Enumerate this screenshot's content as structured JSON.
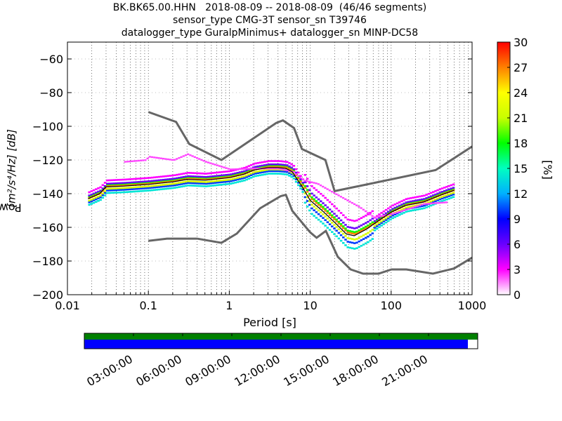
{
  "title": {
    "line1": "BK.BK65.00.HHN   2018-08-09 -- 2018-08-09  (46/46 segments)",
    "line2": "sensor_type CMG-3T sensor_sn T39746",
    "line3": "datalogger_type GuralpMinimus+ datalogger_sn MINP-DC58"
  },
  "chart_data": {
    "type": "heatmap",
    "xlabel": "Period [s]",
    "ylabel_prefix": "Power",
    "ylabel_units": "[m²/s⁴/Hz] [dB]",
    "x_scale": "log",
    "xlim": [
      0.01,
      1000
    ],
    "ylim": [
      -200,
      -50
    ],
    "x_ticks": [
      {
        "value": 0.01,
        "label": "0.01"
      },
      {
        "value": 0.1,
        "label": "0.1"
      },
      {
        "value": 1,
        "label": "1"
      },
      {
        "value": 10,
        "label": "10"
      },
      {
        "value": 100,
        "label": "100"
      },
      {
        "value": 1000,
        "label": "1000"
      }
    ],
    "y_ticks": [
      {
        "value": -60,
        "label": "−60"
      },
      {
        "value": -80,
        "label": "−80"
      },
      {
        "value": -100,
        "label": "−100"
      },
      {
        "value": -120,
        "label": "−120"
      },
      {
        "value": -140,
        "label": "−140"
      },
      {
        "value": -160,
        "label": "−160"
      },
      {
        "value": -180,
        "label": "−180"
      },
      {
        "value": -200,
        "label": "−200"
      }
    ],
    "grid": "dotted vertical at minor log ticks",
    "colorbar": {
      "label": "[%]",
      "min": 0,
      "max": 30,
      "ticks": [
        "0",
        "3",
        "6",
        "9",
        "12",
        "15",
        "18",
        "21",
        "24",
        "27",
        "30"
      ],
      "colormap": [
        "#ffffff",
        "#ff00ff",
        "#6a00ff",
        "#0000ff",
        "#00b0ff",
        "#00ffc0",
        "#00ff00",
        "#c8ff00",
        "#ffff00",
        "#ff8000",
        "#ff0000"
      ]
    },
    "noise_model_color": "#666666",
    "noise_model_high": [
      [
        0.1,
        -91.5
      ],
      [
        0.22,
        -97.4
      ],
      [
        0.32,
        -110.5
      ],
      [
        0.8,
        -120
      ],
      [
        3.8,
        -98
      ],
      [
        4.6,
        -96.5
      ],
      [
        6.3,
        -101
      ],
      [
        7.9,
        -113.5
      ],
      [
        15.4,
        -120
      ],
      [
        20,
        -138.5
      ],
      [
        354.8,
        -126
      ],
      [
        1000,
        -112
      ]
    ],
    "noise_model_low": [
      [
        0.1,
        -168
      ],
      [
        0.17,
        -166.7
      ],
      [
        0.4,
        -166.7
      ],
      [
        0.8,
        -169.2
      ],
      [
        1.24,
        -163.7
      ],
      [
        2.4,
        -148.7
      ],
      [
        4.3,
        -141.5
      ],
      [
        5,
        -140.7
      ],
      [
        6,
        -150.2
      ],
      [
        10,
        -163
      ],
      [
        12,
        -166.2
      ],
      [
        15.6,
        -162.1
      ],
      [
        21.9,
        -177.5
      ],
      [
        31.6,
        -185
      ],
      [
        45,
        -187.5
      ],
      [
        70,
        -187.5
      ],
      [
        101,
        -185
      ],
      [
        154,
        -185
      ],
      [
        328,
        -187.5
      ],
      [
        600,
        -184.4
      ],
      [
        1000,
        -178
      ]
    ],
    "mode_series": [
      [
        0.018,
        -143
      ],
      [
        0.025,
        -140
      ],
      [
        0.03,
        -136
      ],
      [
        0.05,
        -135.5
      ],
      [
        0.1,
        -134.5
      ],
      [
        0.2,
        -133
      ],
      [
        0.3,
        -131.5
      ],
      [
        0.5,
        -132
      ],
      [
        1,
        -130.5
      ],
      [
        1.5,
        -128.5
      ],
      [
        2,
        -126
      ],
      [
        3,
        -124.5
      ],
      [
        4,
        -124.5
      ],
      [
        5,
        -125
      ],
      [
        6,
        -127
      ],
      [
        8,
        -136
      ],
      [
        10,
        -144
      ],
      [
        14,
        -150
      ],
      [
        20,
        -157
      ],
      [
        28,
        -164
      ],
      [
        35,
        -165
      ],
      [
        50,
        -161
      ],
      [
        70,
        -156
      ],
      [
        100,
        -151
      ],
      [
        150,
        -147
      ],
      [
        250,
        -145
      ],
      [
        400,
        -141
      ],
      [
        600,
        -138
      ]
    ],
    "density_bands": [
      {
        "color_value": 3,
        "offset": 4
      },
      {
        "color_value": 6,
        "offset": 2
      },
      {
        "color_value": 10,
        "offset": -2
      },
      {
        "color_value": 14,
        "offset": -3.5
      },
      {
        "color_value": 18,
        "offset": 1
      },
      {
        "color_value": 22,
        "offset": -1
      },
      {
        "color_value": 27,
        "offset": 0.5
      }
    ],
    "outlier_series": [
      [
        0.05,
        -121
      ],
      [
        0.09,
        -120
      ],
      [
        0.1,
        -118
      ],
      [
        0.2,
        -120
      ],
      [
        0.3,
        -116.5
      ],
      [
        0.5,
        -121
      ],
      [
        1,
        -125.5
      ],
      [
        2,
        -125
      ],
      [
        4,
        -125
      ],
      [
        6,
        -127
      ],
      [
        8,
        -132
      ],
      [
        12,
        -134
      ],
      [
        20,
        -140
      ],
      [
        40,
        -148
      ],
      [
        60,
        -154
      ],
      [
        100,
        -152
      ],
      [
        250,
        -146
      ],
      [
        500,
        -145
      ]
    ]
  },
  "time_bar": {
    "top_color": "#008000",
    "bottom_color": "#0000ff",
    "coverage_fraction": 0.975,
    "tick_labels": [
      "03:00:00",
      "06:00:00",
      "09:00:00",
      "12:00:00",
      "15:00:00",
      "18:00:00",
      "21:00:00"
    ]
  }
}
